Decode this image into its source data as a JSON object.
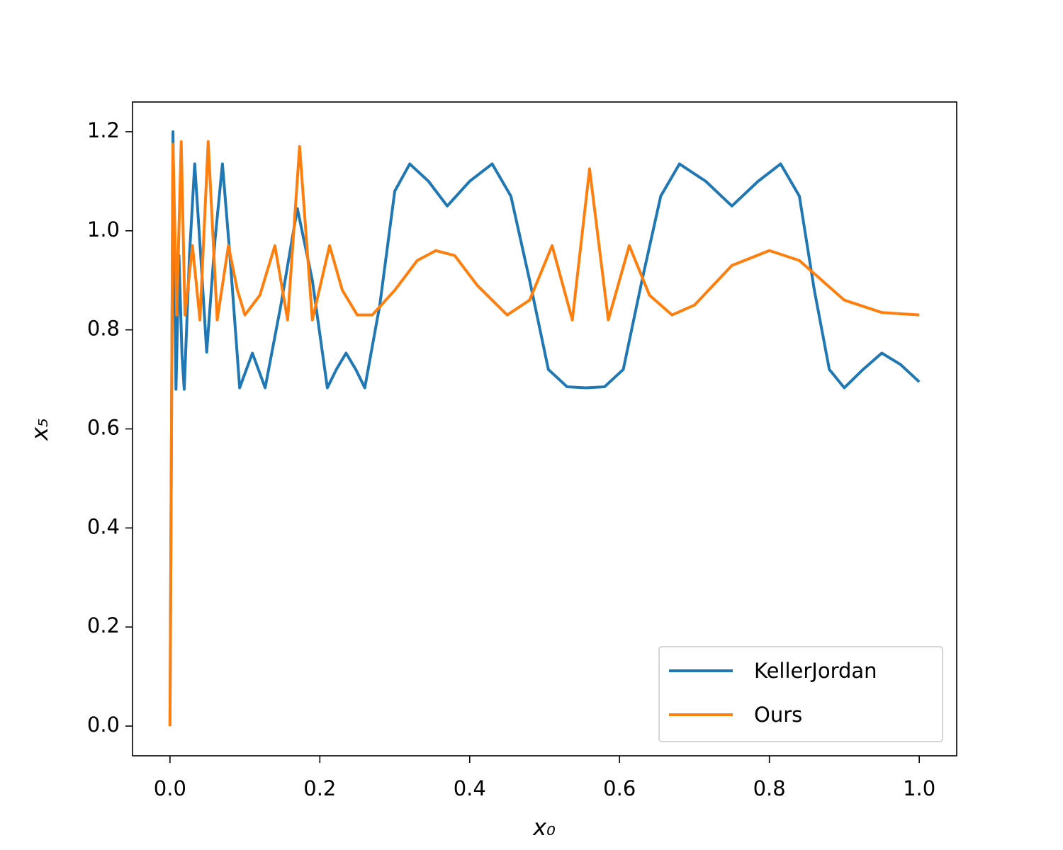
{
  "chart_data": {
    "type": "line",
    "xlabel": "x₀",
    "ylabel": "x₅",
    "xlim": [
      -0.05,
      1.05
    ],
    "ylim": [
      -0.06,
      1.26
    ],
    "xticks": [
      {
        "value": 0,
        "label": "0.0"
      },
      0.2,
      0.4,
      0.6,
      0.8,
      {
        "value": 1,
        "label": "1.0"
      }
    ],
    "yticks": [
      {
        "value": 0,
        "label": "0.0"
      },
      0.2,
      0.4,
      0.6,
      0.8,
      {
        "value": 1,
        "label": "1.0"
      },
      1.2
    ],
    "legend": "lower right",
    "series": [
      {
        "name": "KellerJordan",
        "color": "#1f77b4",
        "x": [
          0,
          0.004,
          0.008,
          0.012,
          0.016,
          0.019,
          0.026,
          0.033,
          0.041,
          0.049,
          0.06,
          0.07,
          0.08,
          0.093,
          0.102,
          0.11,
          0.118,
          0.127,
          0.148,
          0.17,
          0.19,
          0.21,
          0.222,
          0.235,
          0.248,
          0.26,
          0.28,
          0.3,
          0.32,
          0.345,
          0.37,
          0.4,
          0.43,
          0.455,
          0.48,
          0.505,
          0.53,
          0.555,
          0.58,
          0.605,
          0.63,
          0.655,
          0.68,
          0.715,
          0.75,
          0.785,
          0.815,
          0.84,
          0.86,
          0.88,
          0.9,
          0.925,
          0.95,
          0.975,
          1.0
        ],
        "values": [
          0,
          1.2,
          0.68,
          0.95,
          0.75,
          0.68,
          0.95,
          1.135,
          0.95,
          0.755,
          0.98,
          1.135,
          0.95,
          0.683,
          0.72,
          0.753,
          0.72,
          0.683,
          0.85,
          1.045,
          0.9,
          0.683,
          0.72,
          0.753,
          0.72,
          0.683,
          0.85,
          1.08,
          1.135,
          1.1,
          1.05,
          1.1,
          1.135,
          1.07,
          0.9,
          0.72,
          0.685,
          0.683,
          0.685,
          0.72,
          0.9,
          1.07,
          1.135,
          1.1,
          1.05,
          1.1,
          1.135,
          1.07,
          0.88,
          0.72,
          0.683,
          0.72,
          0.753,
          0.73,
          0.695
        ]
      },
      {
        "name": "Ours",
        "color": "#ff7f0e",
        "x": [
          0,
          0.004,
          0.009,
          0.015,
          0.02,
          0.03,
          0.04,
          0.051,
          0.063,
          0.078,
          0.09,
          0.1,
          0.12,
          0.14,
          0.157,
          0.173,
          0.19,
          0.213,
          0.23,
          0.25,
          0.27,
          0.3,
          0.33,
          0.355,
          0.38,
          0.41,
          0.45,
          0.48,
          0.51,
          0.537,
          0.56,
          0.585,
          0.613,
          0.64,
          0.67,
          0.7,
          0.75,
          0.8,
          0.84,
          0.87,
          0.9,
          0.95,
          1.0
        ],
        "values": [
          0,
          1.175,
          0.83,
          1.18,
          0.83,
          0.97,
          0.82,
          1.18,
          0.82,
          0.97,
          0.88,
          0.83,
          0.87,
          0.97,
          0.82,
          1.17,
          0.82,
          0.97,
          0.88,
          0.83,
          0.83,
          0.88,
          0.94,
          0.96,
          0.95,
          0.89,
          0.83,
          0.86,
          0.97,
          0.82,
          1.125,
          0.82,
          0.97,
          0.87,
          0.83,
          0.85,
          0.93,
          0.96,
          0.94,
          0.9,
          0.86,
          0.835,
          0.83
        ]
      }
    ]
  }
}
